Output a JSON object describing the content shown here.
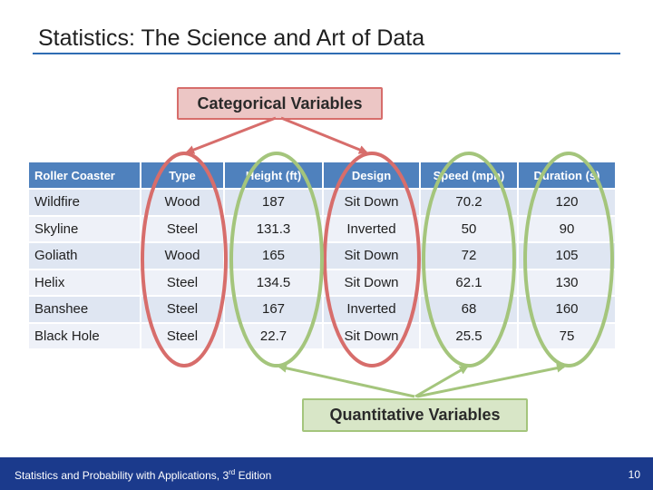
{
  "slide": {
    "title": "Statistics: The Science and Art of Data"
  },
  "labels": {
    "categorical": "Categorical Variables",
    "quantitative": "Quantitative Variables"
  },
  "table": {
    "headers": [
      "Roller Coaster",
      "Type",
      "Height (ft)",
      "Design",
      "Speed (mph)",
      "Duration (s)"
    ],
    "rows": [
      [
        "Wildfire",
        "Wood",
        "187",
        "Sit Down",
        "70.2",
        "120"
      ],
      [
        "Skyline",
        "Steel",
        "131.3",
        "Inverted",
        "50",
        "90"
      ],
      [
        "Goliath",
        "Wood",
        "165",
        "Sit Down",
        "72",
        "105"
      ],
      [
        "Helix",
        "Steel",
        "134.5",
        "Sit Down",
        "62.1",
        "130"
      ],
      [
        "Banshee",
        "Steel",
        "167",
        "Inverted",
        "68",
        "160"
      ],
      [
        "Black Hole",
        "Steel",
        "22.7",
        "Sit Down",
        "25.5",
        "75"
      ]
    ]
  },
  "footer": {
    "text_before": "Statistics and Probability with Applications, 3",
    "superscript": "rd",
    "text_after": " Edition",
    "page_number": "10"
  },
  "colors": {
    "title_rule": "#2f6cb3",
    "table_header": "#4f81bd",
    "categorical_accent": "#d76d6b",
    "quantitative_accent": "#a4c57c",
    "footer_bar": "#1b3a8c"
  }
}
